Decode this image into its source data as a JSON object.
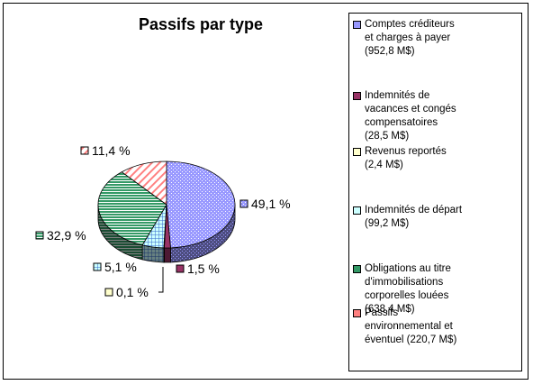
{
  "colors": {
    "blue": "#9999ff",
    "maroon": "#993366",
    "cream": "#ffffcc",
    "cyan": "#ccffff",
    "green": "#339966",
    "salmon": "#ff8080"
  },
  "chart_data": {
    "type": "pie",
    "title": "Passifs par type",
    "series": [
      {
        "label": "Comptes créditeurs\net charges à payer\n(952,8 M$)",
        "value": 952.8,
        "percent_label": "49,1 %",
        "percent": 49.1,
        "color": "#9999ff",
        "pattern": "dots"
      },
      {
        "label": "Indemnités de\nvacances et congés\ncompensatoires\n(28,5 M$)",
        "value": 28.5,
        "percent_label": "1,5 %",
        "percent": 1.5,
        "color": "#993366",
        "pattern": "solid"
      },
      {
        "label": "Revenus reportés\n(2,4 M$)",
        "value": 2.4,
        "percent_label": "0,1 %",
        "percent": 0.1,
        "color": "#ffffcc",
        "pattern": "solid"
      },
      {
        "label": "Indemnités de départ\n(99,2 M$)",
        "value": 99.2,
        "percent_label": "5,1 %",
        "percent": 5.1,
        "color": "#ccffff",
        "pattern": "grid"
      },
      {
        "label": "Obligations au titre\nd'immobilisations\ncorporelles louées\n(638,4 M$)",
        "value": 638.4,
        "percent_label": "32,9 %",
        "percent": 32.9,
        "color": "#339966",
        "pattern": "hlines"
      },
      {
        "label": "Passifs\nenvironnemental et\néventuel (220,7 M$)",
        "value": 220.7,
        "percent_label": "11,4 %",
        "percent": 11.4,
        "color": "#ff8080",
        "pattern": "diag"
      }
    ],
    "legend": "right"
  }
}
